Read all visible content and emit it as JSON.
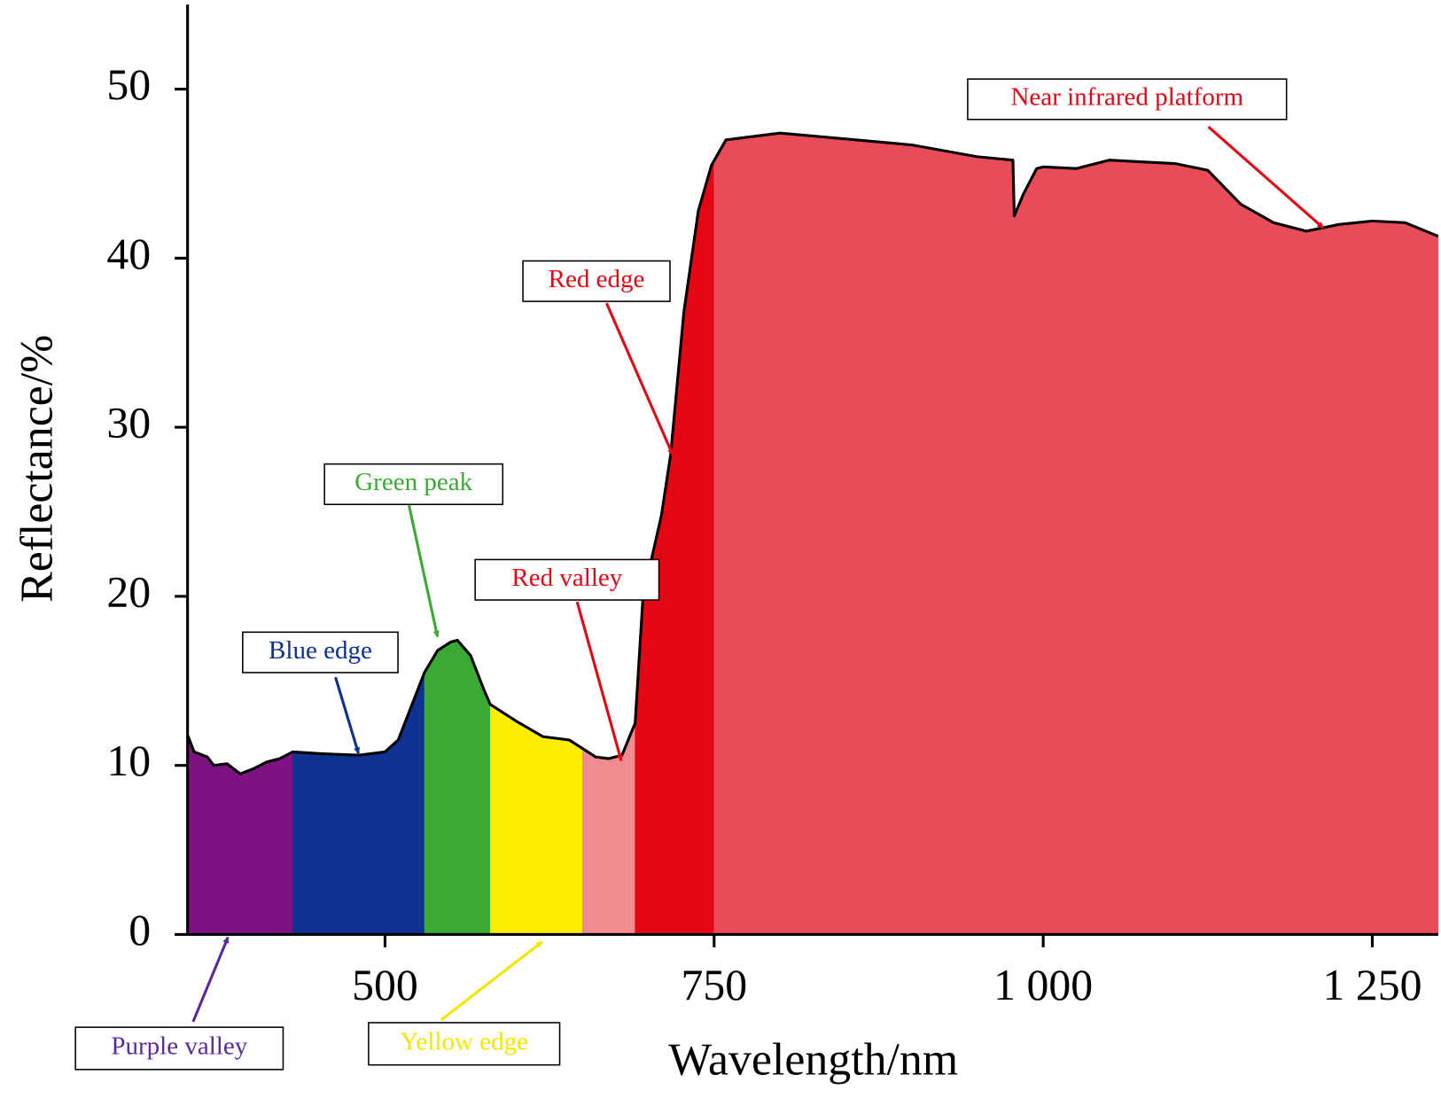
{
  "chart_data": {
    "type": "area",
    "x_label": "Wavelength/nm",
    "y_label": "Reflectance/%",
    "xlim": [
      350,
      1300
    ],
    "ylim": [
      0,
      55
    ],
    "xticks": [
      500,
      750,
      {
        "value": 1000,
        "label": "1 000"
      },
      {
        "value": 1250,
        "label": "1 250"
      }
    ],
    "yticks": [
      0,
      10,
      20,
      30,
      40,
      50
    ],
    "line_color": "#000000",
    "x": [
      350,
      355,
      365,
      370,
      380,
      390,
      400,
      410,
      420,
      430,
      450,
      480,
      500,
      510,
      520,
      530,
      540,
      550,
      555,
      565,
      575,
      580,
      600,
      620,
      640,
      650,
      660,
      670,
      680,
      690,
      696,
      710,
      717,
      727,
      738,
      748,
      759,
      800,
      900,
      950,
      977,
      978,
      985,
      995,
      1000,
      1025,
      1050,
      1100,
      1125,
      1150,
      1175,
      1200,
      1225,
      1250,
      1275,
      1300
    ],
    "values": [
      11.8,
      10.8,
      10.5,
      10.0,
      10.1,
      9.5,
      9.8,
      10.2,
      10.4,
      10.8,
      10.7,
      10.6,
      10.8,
      11.5,
      13.5,
      15.5,
      16.8,
      17.3,
      17.4,
      16.5,
      14.5,
      13.6,
      12.6,
      11.7,
      11.5,
      11.0,
      10.5,
      10.4,
      10.6,
      12.5,
      20.0,
      24.8,
      28.4,
      36.8,
      42.8,
      45.5,
      47.0,
      47.4,
      46.7,
      46.0,
      45.8,
      42.5,
      43.8,
      45.3,
      45.4,
      45.3,
      45.8,
      45.6,
      45.2,
      43.2,
      42.1,
      41.6,
      42.0,
      42.2,
      42.1,
      41.3
    ],
    "regions": [
      {
        "from": 350,
        "to": 430,
        "color": "#7e1282"
      },
      {
        "from": 430,
        "to": 530,
        "color": "#0f3191"
      },
      {
        "from": 530,
        "to": 580,
        "color": "#3aaa35"
      },
      {
        "from": 580,
        "to": 650,
        "color": "#ffed00"
      },
      {
        "from": 650,
        "to": 690,
        "color": "#f08c90"
      },
      {
        "from": 690,
        "to": 750,
        "color": "#e30613"
      },
      {
        "from": 750,
        "to": 1300,
        "color": "#e84c58"
      }
    ],
    "annotations": [
      {
        "text": "Near infrared platform",
        "color": "#e30613"
      },
      {
        "text": "Red edge",
        "color": "#e30613"
      },
      {
        "text": "Green peak",
        "color": "#3aaa35"
      },
      {
        "text": "Red valley",
        "color": "#e30613"
      },
      {
        "text": "Blue edge",
        "color": "#10308f"
      },
      {
        "text": "Purple valley",
        "color": "#5b2a9a"
      },
      {
        "text": "Yellow edge",
        "color": "#f5e600"
      }
    ]
  }
}
